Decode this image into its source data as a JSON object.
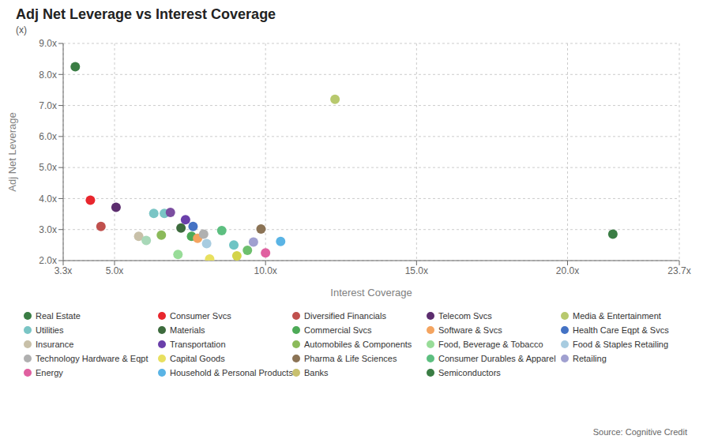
{
  "chart_data": {
    "type": "scatter",
    "title": "Adj Net Leverage vs Interest Coverage",
    "subtitle": "(x)",
    "xlabel": "Interest Coverage",
    "ylabel": "Adj Net Leverage",
    "source": "Source: Cognitive Credit",
    "xlim": [
      3.3,
      23.7
    ],
    "ylim": [
      2.0,
      9.0
    ],
    "xticks": [
      {
        "value": 3.3,
        "label": "3.3x"
      },
      {
        "value": 5.0,
        "label": "5.0x"
      },
      {
        "value": 10.0,
        "label": "10.0x"
      },
      {
        "value": 15.0,
        "label": "15.0x"
      },
      {
        "value": 20.0,
        "label": "20.0x"
      },
      {
        "value": 23.7,
        "label": "23.7x"
      }
    ],
    "yticks": [
      {
        "value": 2.0,
        "label": "2.0x"
      },
      {
        "value": 3.0,
        "label": "3.0x"
      },
      {
        "value": 4.0,
        "label": "4.0x"
      },
      {
        "value": 5.0,
        "label": "5.0x"
      },
      {
        "value": 6.0,
        "label": "6.0x"
      },
      {
        "value": 7.0,
        "label": "7.0x"
      },
      {
        "value": 8.0,
        "label": "8.0x"
      },
      {
        "value": 9.0,
        "label": "9.0x"
      }
    ],
    "grid": true,
    "x": [
      3.7,
      4.2,
      4.55,
      5.05,
      6.3,
      6.65,
      12.3,
      7.2,
      7.55,
      7.75,
      7.95,
      7.6,
      6.85,
      8.55,
      8.95,
      9.05,
      9.4,
      9.85,
      9.6,
      10.0,
      10.5,
      21.5,
      7.1,
      5.8,
      6.05,
      8.05,
      8.15,
      6.55,
      7.35
    ],
    "values": [
      8.25,
      3.95,
      3.1,
      3.72,
      3.52,
      3.52,
      7.2,
      3.05,
      2.78,
      2.72,
      2.85,
      3.1,
      3.55,
      2.97,
      2.5,
      2.15,
      2.33,
      3.02,
      2.6,
      2.25,
      2.62,
      2.85,
      2.2,
      2.78,
      2.65,
      2.55,
      2.05,
      2.82,
      3.32
    ],
    "colors": [
      "#3a7d44",
      "#e8262d",
      "#c0504d",
      "#5c2d6e",
      "#7ac5c5",
      "#7ac5c5",
      "#b8c96e",
      "#3d6b3d",
      "#4daa57",
      "#f4a460",
      "#b0b0b0",
      "#4472c4",
      "#7b4ea0",
      "#5dbf80",
      "#6ec4c4",
      "#d4d44a",
      "#6dbf6d",
      "#8b7355",
      "#a0a0d0",
      "#e060a0",
      "#5ab4e5",
      "#3a7d44",
      "#98dc98",
      "#c8c0a8",
      "#a8d8b8",
      "#a8cce0",
      "#e8e060",
      "#8bba5a",
      "#6a3faa"
    ],
    "legend_entries": [
      {
        "name": "Real Estate",
        "color": "#3a7d44"
      },
      {
        "name": "Consumer Svcs",
        "color": "#e8262d"
      },
      {
        "name": "Diversified Financials",
        "color": "#c0504d"
      },
      {
        "name": "Telecom Svcs",
        "color": "#5c2d6e"
      },
      {
        "name": "Media & Entertainment",
        "color": "#b8c96e"
      },
      {
        "name": "Utilities",
        "color": "#7ac5c5"
      },
      {
        "name": "Materials",
        "color": "#3d6b3d"
      },
      {
        "name": "Commercial Svcs",
        "color": "#4daa57"
      },
      {
        "name": "Software & Svcs",
        "color": "#f4a460"
      },
      {
        "name": "Health Care Eqpt & Svcs",
        "color": "#4472c4"
      },
      {
        "name": "Insurance",
        "color": "#c8c0a8"
      },
      {
        "name": "Transportation",
        "color": "#6a3faa"
      },
      {
        "name": "Automobiles & Components",
        "color": "#8bba5a"
      },
      {
        "name": "Food, Beverage & Tobacco",
        "color": "#98dc98"
      },
      {
        "name": "Food & Staples Retailing",
        "color": "#a8cce0"
      },
      {
        "name": "Technology Hardware & Eqpt",
        "color": "#b0b0b0"
      },
      {
        "name": "Capital Goods",
        "color": "#e8e060"
      },
      {
        "name": "Pharma & Life Sciences",
        "color": "#8b7355"
      },
      {
        "name": "Consumer Durables & Apparel",
        "color": "#5dbf80"
      },
      {
        "name": "Retailing",
        "color": "#a0a0d0"
      },
      {
        "name": "Energy",
        "color": "#e060a0"
      },
      {
        "name": "Household & Personal Products",
        "color": "#5ab4e5"
      },
      {
        "name": "Banks",
        "color": "#c8c06e"
      },
      {
        "name": "Semiconductors",
        "color": "#3a7d44"
      }
    ]
  }
}
